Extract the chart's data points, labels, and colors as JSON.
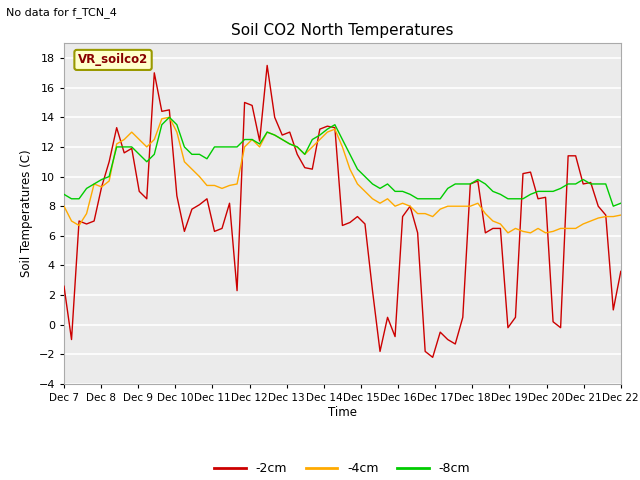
{
  "title": "Soil CO2 North Temperatures",
  "no_data_text": "No data for f_TCN_4",
  "ylabel": "Soil Temperatures (C)",
  "xlabel": "Time",
  "sensor_label": "VR_soilco2",
  "ylim": [
    -4,
    19
  ],
  "yticks": [
    -4,
    -2,
    0,
    2,
    4,
    6,
    8,
    10,
    12,
    14,
    16,
    18
  ],
  "xtick_labels": [
    "Dec 7",
    "Dec 8",
    "Dec 9",
    "Dec 10",
    "Dec 11",
    "Dec 12",
    "Dec 13",
    "Dec 14",
    "Dec 15",
    "Dec 16",
    "Dec 17",
    "Dec 18",
    "Dec 19",
    "Dec 20",
    "Dec 21",
    "Dec 22"
  ],
  "colors": {
    "red": "#cc0000",
    "orange": "#ffaa00",
    "green": "#00cc00",
    "fig_bg": "#ffffff",
    "plot_bg": "#ebebeb",
    "sensor_box_bg": "#ffffcc",
    "sensor_box_edge": "#999900"
  },
  "legend_labels": [
    "-2cm",
    "-4cm",
    "-8cm"
  ],
  "red_data": [
    2.6,
    -1.0,
    7.0,
    6.8,
    7.0,
    9.3,
    11.0,
    13.3,
    11.6,
    11.9,
    9.0,
    8.5,
    17.0,
    14.4,
    14.5,
    8.7,
    6.3,
    7.8,
    8.1,
    8.5,
    6.3,
    6.5,
    8.2,
    2.3,
    15.0,
    14.8,
    12.4,
    17.5,
    14.0,
    12.8,
    13.0,
    11.5,
    10.6,
    10.5,
    13.2,
    13.4,
    13.3,
    6.7,
    6.9,
    7.3,
    6.8,
    2.3,
    -1.8,
    0.5,
    -0.8,
    7.3,
    8.0,
    6.2,
    -1.8,
    -2.2,
    -0.5,
    -1.0,
    -1.3,
    0.5,
    9.5,
    9.7,
    6.2,
    6.5,
    6.5,
    -0.2,
    0.5,
    10.2,
    10.3,
    8.5,
    8.6,
    0.2,
    -0.2,
    11.4,
    11.4,
    9.5,
    9.6,
    8.0,
    7.4,
    1.0,
    3.6
  ],
  "orange_data": [
    8.0,
    7.0,
    6.7,
    7.5,
    9.5,
    9.3,
    9.7,
    12.2,
    12.5,
    13.0,
    12.5,
    12.0,
    12.5,
    13.9,
    14.0,
    13.0,
    11.0,
    10.5,
    10.0,
    9.4,
    9.4,
    9.2,
    9.4,
    9.5,
    12.0,
    12.5,
    12.0,
    13.0,
    12.8,
    12.5,
    12.2,
    12.0,
    11.5,
    12.0,
    12.5,
    13.0,
    13.2,
    12.0,
    10.5,
    9.5,
    9.0,
    8.5,
    8.2,
    8.5,
    8.0,
    8.2,
    8.0,
    7.5,
    7.5,
    7.3,
    7.8,
    8.0,
    8.0,
    8.0,
    8.0,
    8.2,
    7.5,
    7.0,
    6.8,
    6.2,
    6.5,
    6.3,
    6.2,
    6.5,
    6.2,
    6.3,
    6.5,
    6.5,
    6.5,
    6.8,
    7.0,
    7.2,
    7.3,
    7.3,
    7.4
  ],
  "green_data": [
    8.8,
    8.5,
    8.5,
    9.2,
    9.5,
    9.8,
    10.0,
    12.0,
    12.0,
    12.0,
    11.5,
    11.0,
    11.5,
    13.5,
    14.0,
    13.5,
    12.0,
    11.5,
    11.5,
    11.2,
    12.0,
    12.0,
    12.0,
    12.0,
    12.5,
    12.5,
    12.2,
    13.0,
    12.8,
    12.5,
    12.2,
    12.0,
    11.5,
    12.5,
    12.8,
    13.2,
    13.5,
    12.5,
    11.5,
    10.5,
    10.0,
    9.5,
    9.2,
    9.5,
    9.0,
    9.0,
    8.8,
    8.5,
    8.5,
    8.5,
    8.5,
    9.2,
    9.5,
    9.5,
    9.5,
    9.8,
    9.5,
    9.0,
    8.8,
    8.5,
    8.5,
    8.5,
    8.8,
    9.0,
    9.0,
    9.0,
    9.2,
    9.5,
    9.5,
    9.8,
    9.5,
    9.5,
    9.5,
    8.0,
    8.2
  ]
}
